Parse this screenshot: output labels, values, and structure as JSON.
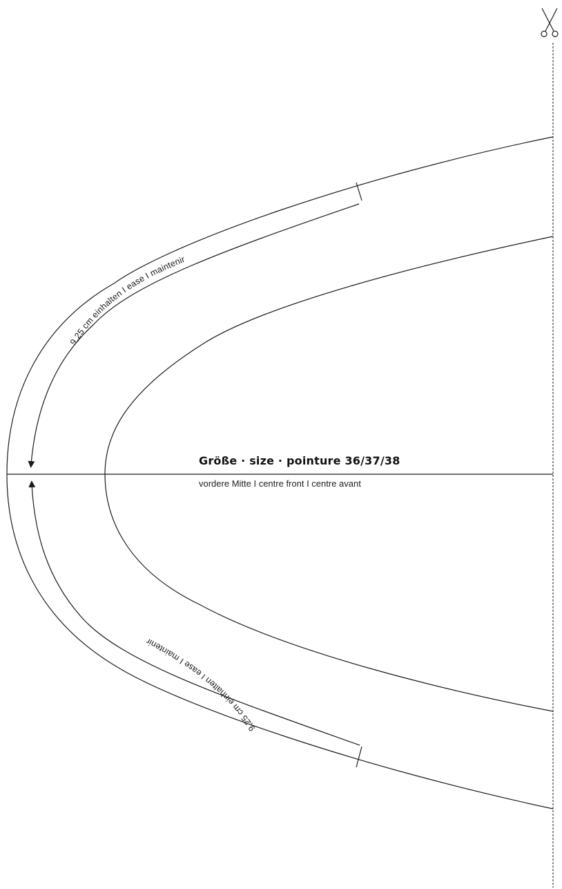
{
  "pattern": {
    "size_label": "Größe · size · pointure 36/37/38",
    "center_front_label": "vordere Mitte I centre front I centre avant",
    "ease_note_top": "9,25 cm einhalten I ease I maintenir",
    "ease_note_bottom": "9,25 cm einhalten I ease I maintenir",
    "icons": [
      "scissors-icon"
    ],
    "colors": {
      "line": "#1a1a1a",
      "background": "#ffffff"
    }
  }
}
